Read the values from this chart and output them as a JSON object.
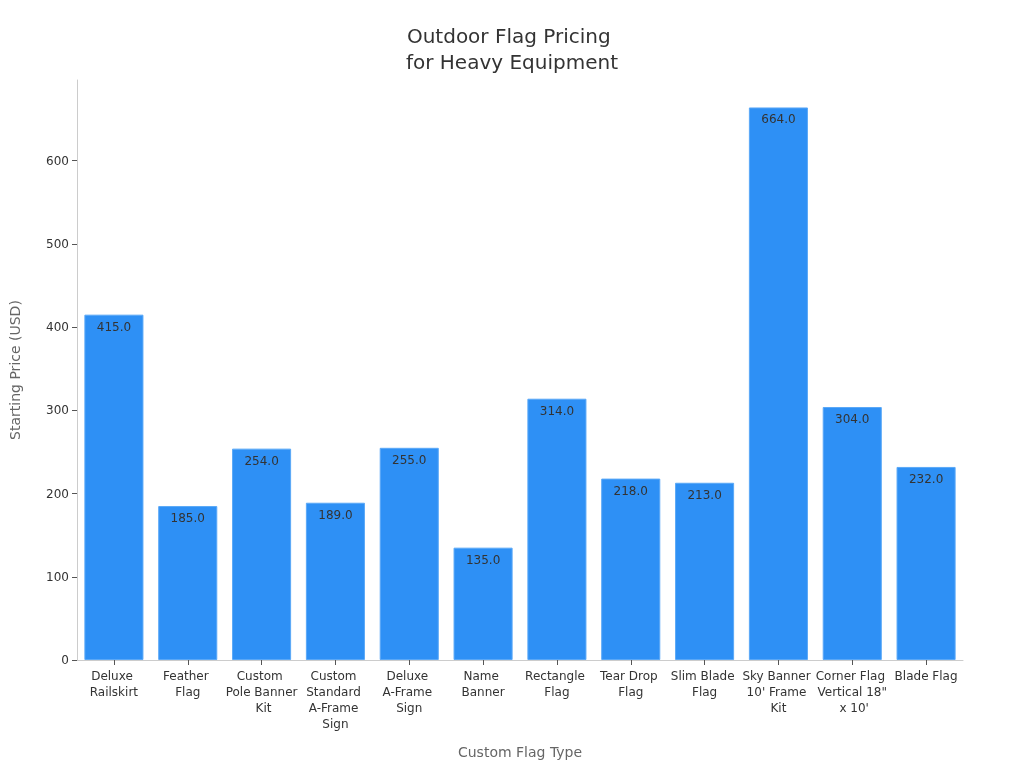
{
  "chart_data": {
    "type": "bar",
    "title": "Outdoor Flag Pricing for Heavy Equipment",
    "xlabel": "Custom Flag Type",
    "ylabel": "Starting Price (USD)",
    "categories": [
      "Deluxe Railskirt",
      "Feather Flag",
      "Custom Pole Banner Kit",
      "Custom Standard A-Frame Sign",
      "Deluxe A-Frame Sign",
      "Name Banner",
      "Rectangle Flag",
      "Tear Drop Flag",
      "Slim Blade Flag",
      "Sky Banner 10' Frame Kit",
      "Corner Flag Vertical 18\" x 10'",
      "Blade Flag"
    ],
    "values": [
      415,
      185,
      254,
      189,
      255,
      135,
      314,
      218,
      213,
      664,
      304,
      232
    ],
    "value_labels": [
      "415.0",
      "185.0",
      "254.0",
      "189.0",
      "255.0",
      "135.0",
      "314.0",
      "218.0",
      "213.0",
      "664.0",
      "304.0",
      "232.0"
    ],
    "color": "#2e90f5",
    "ylim": [
      0,
      697
    ],
    "yticks": [
      0,
      100,
      200,
      300,
      400,
      500,
      600
    ]
  }
}
